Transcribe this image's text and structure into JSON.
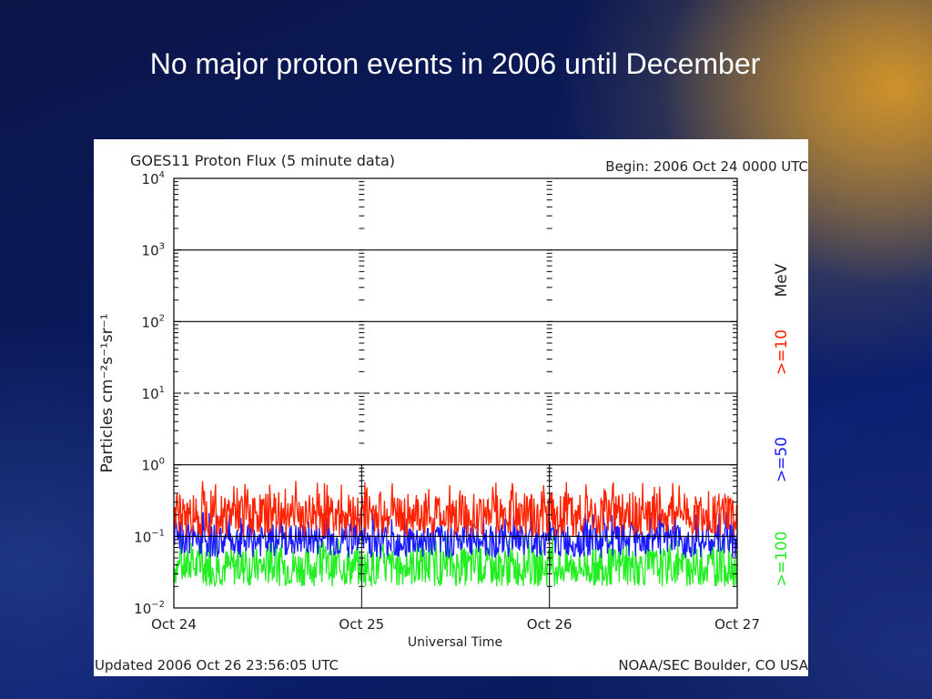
{
  "slide": {
    "title": "No major proton events in 2006 until December"
  },
  "chart_data": {
    "type": "line",
    "title": "GOES11 Proton Flux (5 minute data)",
    "begin_label": "Begin: 2006 Oct 24 0000 UTC",
    "xlabel": "Universal Time",
    "ylabel": "Particles cm⁻²s⁻¹sr⁻¹",
    "yscale": "log",
    "ylim": [
      0.01,
      10000
    ],
    "y_ticks": [
      {
        "base": "10",
        "exp": "4",
        "value": 10000
      },
      {
        "base": "10",
        "exp": "3",
        "value": 1000
      },
      {
        "base": "10",
        "exp": "2",
        "value": 100
      },
      {
        "base": "10",
        "exp": "1",
        "value": 10
      },
      {
        "base": "10",
        "exp": "0",
        "value": 1
      },
      {
        "base": "10",
        "exp": "−1",
        "value": 0.1
      },
      {
        "base": "10",
        "exp": "−2",
        "value": 0.01
      }
    ],
    "x_ticks": [
      "Oct 24",
      "Oct 25",
      "Oct 26",
      "Oct 27"
    ],
    "reference_lines": [
      1000,
      100,
      10,
      1,
      0.1
    ],
    "dashed_line": 10,
    "series": [
      {
        "name": ">=10",
        "color": "#ff2200",
        "typical_range": [
          0.1,
          0.4
        ],
        "peak": 0.6
      },
      {
        "name": ">=50",
        "color": "#1a1aff",
        "typical_range": [
          0.05,
          0.15
        ],
        "peak": 0.22
      },
      {
        "name": ">=100",
        "color": "#22ee22",
        "typical_range": [
          0.02,
          0.07
        ],
        "peak": 0.1
      }
    ],
    "legend": {
      "unit": "MeV",
      "placement": "right"
    },
    "footer_left": "Updated 2006 Oct 26 23:56:05 UTC",
    "footer_right": "NOAA/SEC Boulder, CO USA"
  }
}
